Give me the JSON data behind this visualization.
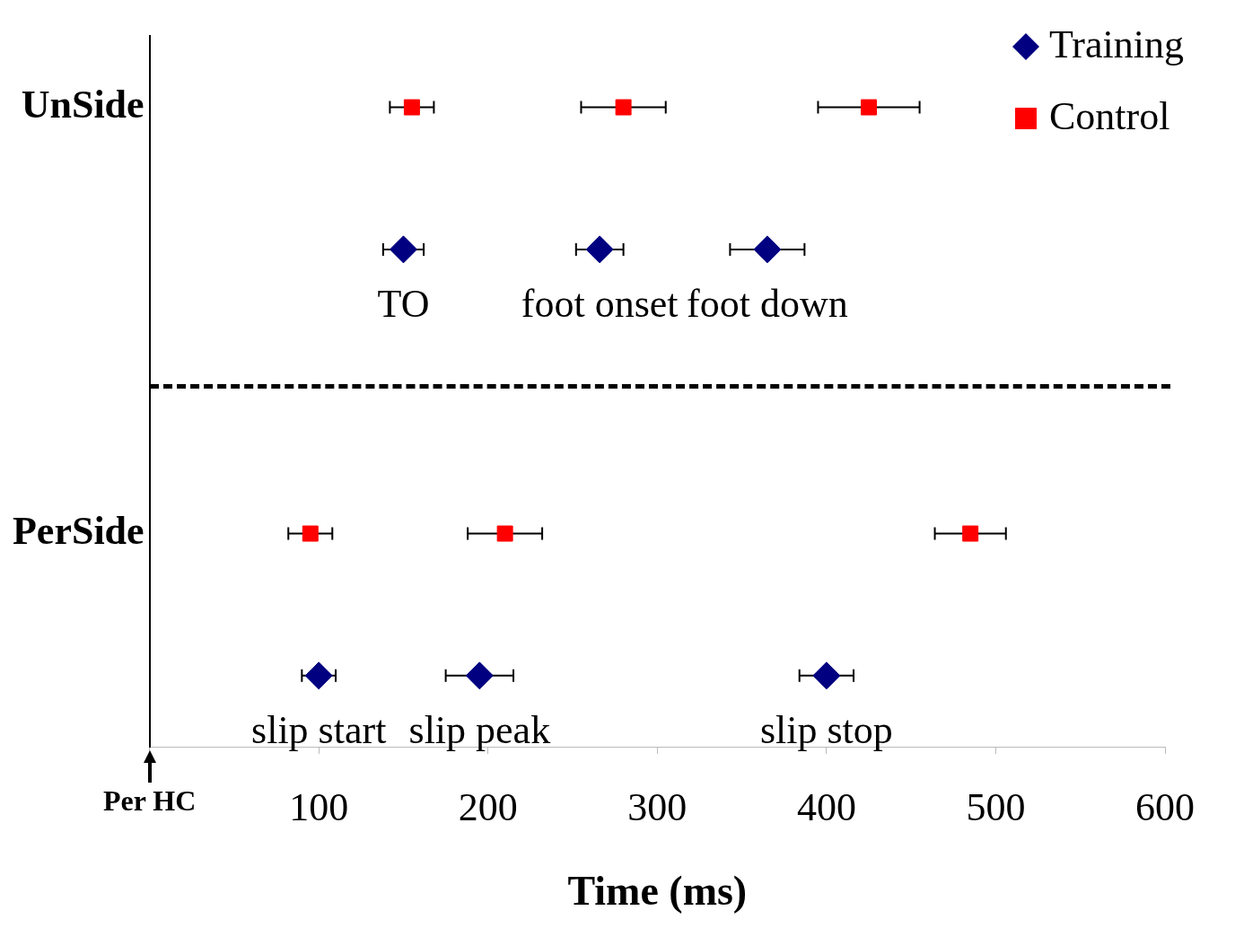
{
  "chart_data": {
    "type": "scatter",
    "orientation": "horizontal",
    "xlabel": "Time (ms)",
    "categories": [
      "UnSide",
      null,
      null,
      "PerSide",
      null
    ],
    "xlim": [
      0,
      600
    ],
    "xticks": [
      {
        "value": 0,
        "label": "Per HC"
      },
      100,
      200,
      300,
      400,
      500,
      600
    ],
    "series": [
      {
        "name": "Training",
        "color": "#000080",
        "marker": "diamond",
        "values": [
          null,
          150,
          null,
          null,
          100
        ],
        "errors": [
          null,
          12,
          null,
          null,
          10
        ]
      },
      {
        "color": "#000080",
        "marker": "diamond",
        "values": [
          null,
          266,
          null,
          null,
          195
        ],
        "errors": [
          null,
          14,
          null,
          null,
          20
        ]
      },
      {
        "color": "#000080",
        "marker": "diamond",
        "values": [
          null,
          365,
          null,
          null,
          400
        ],
        "errors": [
          null,
          22,
          null,
          null,
          16
        ]
      },
      {
        "name": "Control",
        "color": "#ff0000",
        "marker": "square",
        "values": [
          155,
          null,
          null,
          95,
          null
        ],
        "errors": [
          13,
          null,
          null,
          13,
          null
        ]
      },
      {
        "color": "#ff0000",
        "marker": "square",
        "values": [
          280,
          null,
          null,
          210,
          null
        ],
        "errors": [
          25,
          null,
          null,
          22,
          null
        ]
      },
      {
        "color": "#ff0000",
        "marker": "square",
        "values": [
          425,
          null,
          null,
          485,
          null
        ],
        "errors": [
          30,
          null,
          null,
          21,
          null
        ]
      }
    ],
    "annotations": [
      "TO",
      "foot onset",
      "foot down",
      "slip start",
      "slip peak",
      "slip stop"
    ],
    "legend": "top right"
  }
}
